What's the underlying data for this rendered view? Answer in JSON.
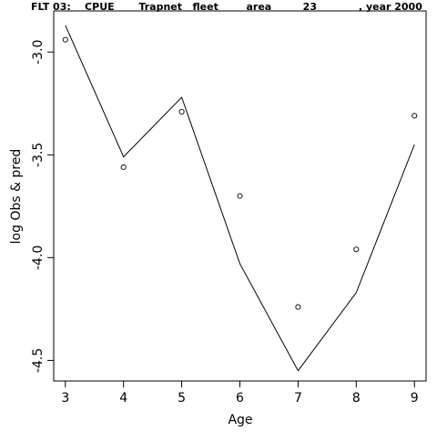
{
  "chart_data": {
    "type": "line",
    "title": "FLT 03:    CPUE       Trapnet   fleet        area         23            , year 2000",
    "xlabel": "Age",
    "ylabel": "log Obs & pred",
    "xlim": [
      2.8,
      9.2
    ],
    "ylim": [
      -4.6,
      -2.8
    ],
    "x_ticks": [
      3,
      4,
      5,
      6,
      7,
      8,
      9
    ],
    "x_tick_labels": [
      "3",
      "4",
      "5",
      "6",
      "7",
      "8",
      "9"
    ],
    "y_ticks": [
      -3.0,
      -3.5,
      -4.0,
      -4.5
    ],
    "y_tick_labels": [
      "-3.0",
      "-3.5",
      "-4.0",
      "-4.5"
    ],
    "grid": false,
    "legend": "none",
    "series": [
      {
        "kind": "observed",
        "style": "points (open circles)",
        "x": [
          3,
          4,
          5,
          6,
          7,
          8,
          9
        ],
        "y": [
          -2.94,
          -3.56,
          -3.29,
          -3.7,
          -4.24,
          -3.96,
          -3.31
        ]
      },
      {
        "kind": "predicted",
        "style": "line",
        "x": [
          3,
          4,
          5,
          6,
          7,
          8,
          9
        ],
        "y": [
          -2.87,
          -3.51,
          -3.22,
          -4.03,
          -4.55,
          -4.17,
          -3.45
        ]
      }
    ]
  }
}
